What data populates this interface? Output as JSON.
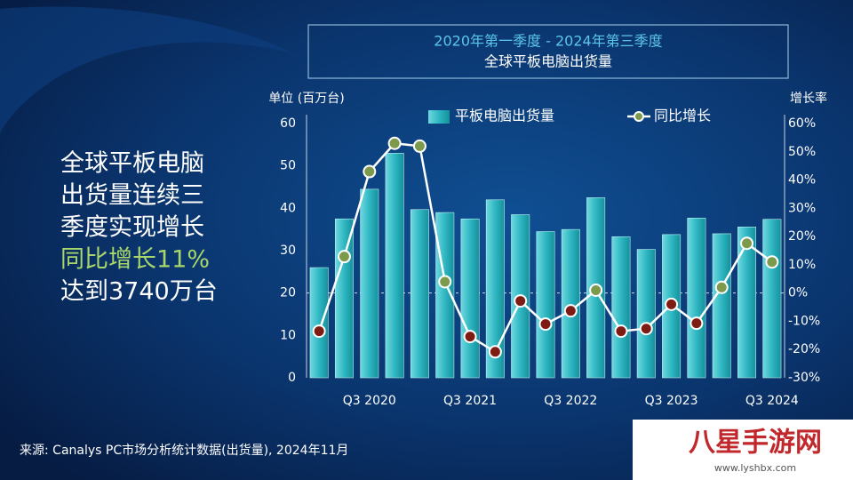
{
  "chart_data": {
    "type": "bar-line",
    "title": "2020年第一季度 - 2024年第三季度",
    "subtitle": "全球平板电脑出货量",
    "y_label": "单位 (百万台)",
    "y2_label": "增长率",
    "headline": [
      "全球平板电脑",
      "出货量连续三",
      "季度实现增长",
      "同比增长11%",
      "达到3740万台"
    ],
    "source": "来源: Canalys PC市场分析统计数据(出货量), 2024年11月",
    "watermark": {
      "name": "八星手游网",
      "url": "www.lyshbx.com"
    },
    "categories": [
      null,
      null,
      "Q3 2020",
      null,
      null,
      null,
      "Q3 2021",
      null,
      null,
      null,
      "Q3 2022",
      null,
      null,
      null,
      "Q3 2023",
      null,
      null,
      null,
      "Q3 2024"
    ],
    "series": [
      {
        "name": "平板电脑出货量",
        "color": "#2fb7c2",
        "values": [
          26,
          37.5,
          44.5,
          53,
          39.7,
          39,
          37.5,
          42,
          38.5,
          34.5,
          35,
          42.5,
          33.3,
          30.3,
          33.8,
          37.7,
          34,
          35.6,
          37.4
        ]
      },
      {
        "name": "同比增长",
        "axis": "y2",
        "color": "#ffffff",
        "marker_color_up": "#7d9a4c",
        "marker_color_down": "#7e1c14",
        "values": [
          -13.5,
          12.9,
          43,
          53,
          52,
          4,
          -15.4,
          -20.8,
          -2.8,
          -11,
          -6.3,
          1,
          -13.5,
          -12.6,
          -4,
          -10.7,
          2,
          17.6,
          11
        ]
      }
    ],
    "ylim": [
      0,
      60
    ],
    "yticks": [
      0,
      10,
      20,
      30,
      40,
      50,
      60
    ],
    "y2lim": [
      -30,
      60
    ],
    "y2ticks": [
      {
        "value": -30,
        "label": "-30%"
      },
      {
        "value": -20,
        "label": "-20%"
      },
      {
        "value": -10,
        "label": "-10%"
      },
      {
        "value": 0,
        "label": "0%"
      },
      {
        "value": 10,
        "label": "10%"
      },
      {
        "value": 20,
        "label": "20%"
      },
      {
        "value": 30,
        "label": "30%"
      },
      {
        "value": 40,
        "label": "40%"
      },
      {
        "value": 50,
        "label": "50%"
      },
      {
        "value": 60,
        "label": "60%"
      }
    ]
  }
}
